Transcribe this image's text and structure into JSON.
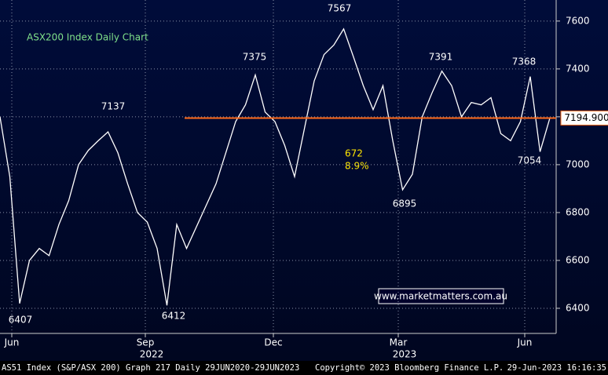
{
  "chart_data": {
    "type": "line",
    "title": "ASX200 Index Daily Chart",
    "watermark": "www.marketmatters.com.au",
    "values": [
      7200,
      6950,
      6420,
      6600,
      6650,
      6620,
      6750,
      6850,
      7000,
      7060,
      7100,
      7137,
      7050,
      6920,
      6800,
      6760,
      6650,
      6412,
      6750,
      6650,
      6740,
      6830,
      6920,
      7050,
      7180,
      7250,
      7375,
      7220,
      7180,
      7080,
      6950,
      7150,
      7350,
      7460,
      7500,
      7567,
      7450,
      7330,
      7230,
      7330,
      7100,
      6895,
      6960,
      7200,
      7300,
      7391,
      7330,
      7200,
      7260,
      7250,
      7280,
      7130,
      7100,
      7180,
      7368,
      7054,
      7195
    ],
    "color": "#ffffff",
    "xlim": [
      0,
      56.64
    ],
    "xticks": [
      {
        "value": 1.2,
        "label": "Jun"
      },
      {
        "value": 14.8,
        "label": "Sep"
      },
      {
        "value": 27.84,
        "label": "Dec"
      },
      {
        "value": 40.56,
        "label": "Mar"
      },
      {
        "value": 53.44,
        "label": "Jun"
      }
    ],
    "years": [
      "2022",
      "2023"
    ],
    "ylim": [
      6295,
      7688
    ],
    "yticks": [
      6400,
      6600,
      6800,
      7000,
      7200,
      7400,
      7600
    ],
    "grid": true,
    "level": 7194.9,
    "level_label": "7194.900",
    "level_color": "#ff6a1a",
    "annotations": [
      "7567",
      "7375",
      "7137",
      "7391",
      "7368",
      "6407",
      "6412",
      "6895",
      "7054"
    ],
    "move": [
      "672",
      "8.9%"
    ],
    "footer": [
      "AS51 Index (S&P/ASX 200) Graph 217  Daily 29JUN2020-29JUN2023",
      "Copyright© 2023 Bloomberg Finance L.P.",
      "29-Jun-2023 16:16:35"
    ]
  }
}
